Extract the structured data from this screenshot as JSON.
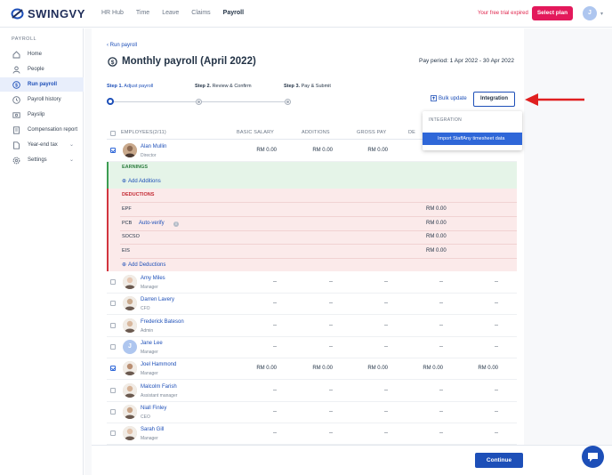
{
  "app": {
    "logo_text": "SWINGVY"
  },
  "topnav": {
    "items": [
      "HR Hub",
      "Time",
      "Leave",
      "Claims",
      "Payroll"
    ],
    "active": "Payroll",
    "trial_text": "Your free trial expired",
    "plan_label": "Select plan",
    "avatar_initial": "J"
  },
  "sidebar": {
    "section_title": "PAYROLL",
    "items": [
      {
        "label": "Home",
        "icon": "home-icon"
      },
      {
        "label": "People",
        "icon": "person-icon"
      },
      {
        "label": "Run payroll",
        "icon": "payroll-icon",
        "active": true
      },
      {
        "label": "Payroll history",
        "icon": "clock-icon"
      },
      {
        "label": "Payslip",
        "icon": "payslip-icon"
      },
      {
        "label": "Compensation report",
        "icon": "report-icon"
      },
      {
        "label": "Year-end tax",
        "icon": "document-icon",
        "expandable": true
      },
      {
        "label": "Settings",
        "icon": "gear-icon",
        "expandable": true
      }
    ]
  },
  "page": {
    "back_label": "Run payroll",
    "title": "Monthly payroll (April 2022)",
    "pay_period": "Pay period: 1 Apr 2022 - 30 Apr 2022",
    "steps": [
      {
        "num": "Step 1.",
        "label": "Adjust payroll"
      },
      {
        "num": "Step 2.",
        "label": "Review & Confirm"
      },
      {
        "num": "Step 3.",
        "label": "Pay & Submit"
      }
    ],
    "bulk_update": "Bulk update",
    "integration_label": "Integration",
    "dropdown": {
      "header": "INTEGRATION",
      "item": "Import StaffAny timesheet data"
    }
  },
  "table": {
    "headers": {
      "employees": "EMPLOYEES(2/11)",
      "basic": "BASIC SALARY",
      "additions": "ADDITIONS",
      "gross": "GROSS PAY",
      "ded": "DE"
    },
    "first_row": {
      "name": "Alan Mullin",
      "role": "Director",
      "basic": "RM 0.00",
      "additions": "RM 0.00",
      "gross": "RM 0.00"
    },
    "earnings": {
      "label": "EARNINGS",
      "add": "Add Additions"
    },
    "deductions": {
      "label": "DEDUCTIONS",
      "items": [
        {
          "name": "EPF",
          "value": "RM 0.00"
        },
        {
          "name": "PCB",
          "link": "Auto-verify",
          "value": "RM 0.00"
        },
        {
          "name": "SOCSO",
          "value": "RM 0.00"
        },
        {
          "name": "EIS",
          "value": "RM 0.00"
        }
      ],
      "add": "Add Deductions"
    },
    "rows": [
      {
        "name": "Amy Miles",
        "role": "Manager",
        "vals": [
          "--",
          "--",
          "--",
          "--",
          "--"
        ],
        "checked": false
      },
      {
        "name": "Darren Lavery",
        "role": "CFO",
        "vals": [
          "--",
          "--",
          "--",
          "--",
          "--"
        ],
        "checked": false
      },
      {
        "name": "Frederick Bateson",
        "role": "Admin",
        "vals": [
          "--",
          "--",
          "--",
          "--",
          "--"
        ],
        "checked": false
      },
      {
        "name": "Jane Lee",
        "role": "Manager",
        "vals": [
          "--",
          "--",
          "--",
          "--",
          "--"
        ],
        "checked": false,
        "initial": "J"
      },
      {
        "name": "Joel Hammond",
        "role": "Manager",
        "vals": [
          "RM 0.00",
          "RM 0.00",
          "RM 0.00",
          "RM 0.00",
          "RM 0.00"
        ],
        "checked": true
      },
      {
        "name": "Malcolm Farish",
        "role": "Assistant manager",
        "vals": [
          "--",
          "--",
          "--",
          "--",
          "--"
        ],
        "checked": false
      },
      {
        "name": "Niall Finley",
        "role": "CEO",
        "vals": [
          "--",
          "--",
          "--",
          "--",
          "--"
        ],
        "checked": false
      },
      {
        "name": "Sarah Gill",
        "role": "Manager",
        "vals": [
          "--",
          "--",
          "--",
          "--",
          "--"
        ],
        "checked": false
      }
    ]
  },
  "footer": {
    "continue_label": "Continue"
  },
  "colors": {
    "primary": "#1d4fb8",
    "plan": "#e3195b",
    "arrow": "#e02020",
    "earnings_bg": "#e5f4e8",
    "deductions_bg": "#fbeaea"
  }
}
